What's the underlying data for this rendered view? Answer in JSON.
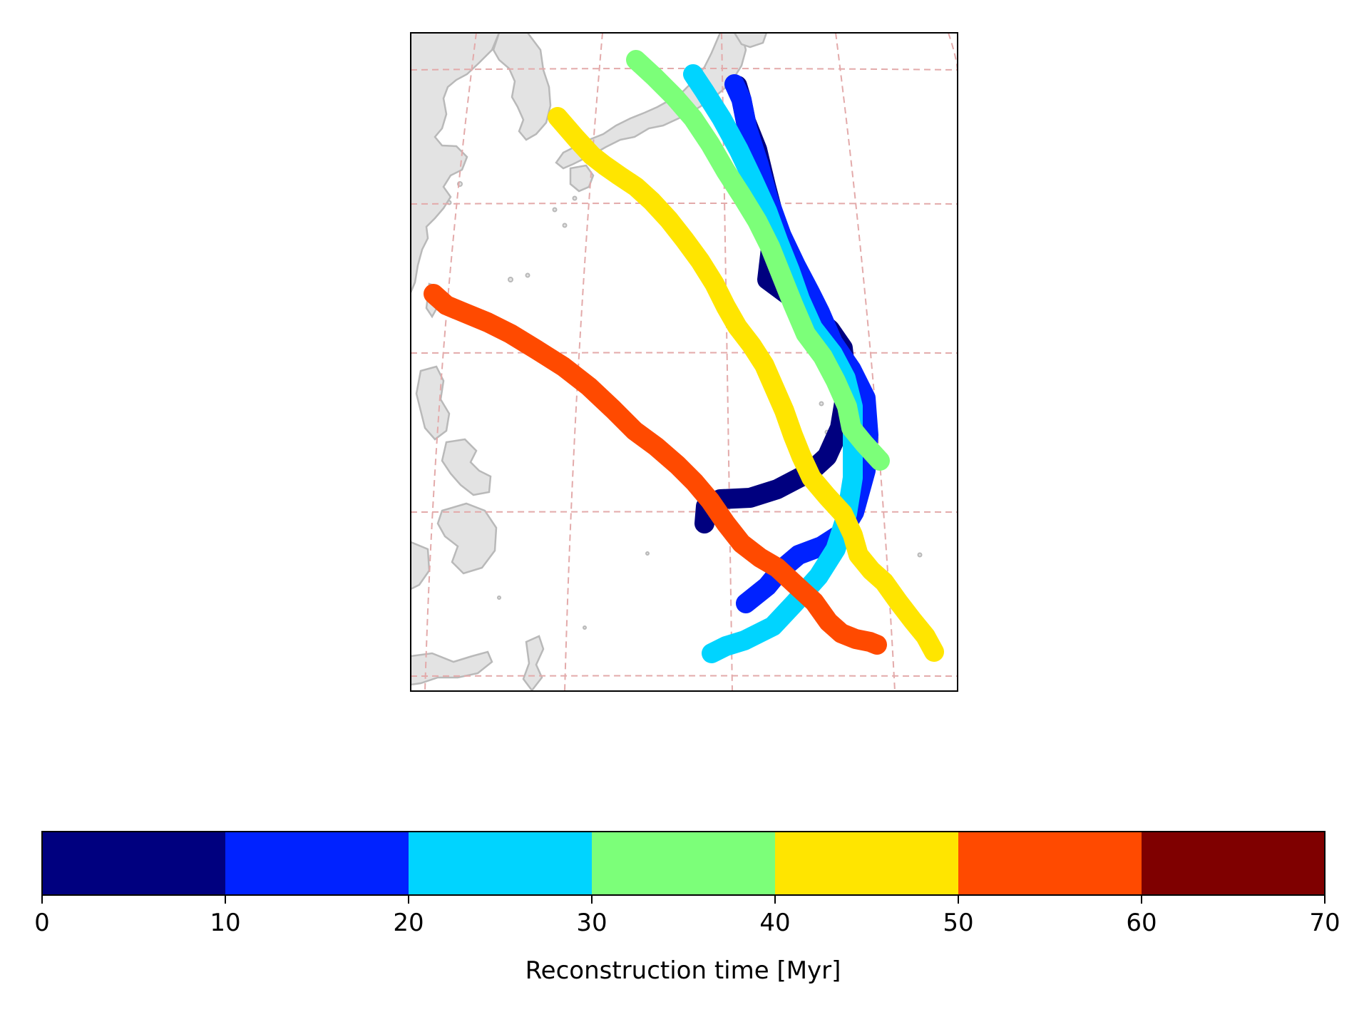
{
  "colorbar": {
    "label": "Reconstruction time [Myr]",
    "ticks": [
      "0",
      "10",
      "20",
      "30",
      "40",
      "50",
      "60",
      "70"
    ],
    "bins": [
      {
        "from": 0,
        "to": 10,
        "color": "#00007f"
      },
      {
        "from": 10,
        "to": 20,
        "color": "#0022ff"
      },
      {
        "from": 20,
        "to": 30,
        "color": "#00d4ff"
      },
      {
        "from": 30,
        "to": 40,
        "color": "#7cff79"
      },
      {
        "from": 40,
        "to": 50,
        "color": "#ffe500"
      },
      {
        "from": 50,
        "to": 60,
        "color": "#ff4a00"
      },
      {
        "from": 60,
        "to": 70,
        "color": "#7f0000"
      }
    ]
  },
  "map": {
    "land_color": "#e3e3e3",
    "coastline_color": "#b9b9b9",
    "gridline_color": "#e3aaaa",
    "gridline_style": "dashed",
    "tracks": [
      {
        "age_bin": "0-10",
        "color": "#00007f"
      },
      {
        "age_bin": "10-20",
        "color": "#0022ff"
      },
      {
        "age_bin": "20-30",
        "color": "#00d4ff"
      },
      {
        "age_bin": "30-40",
        "color": "#7cff79"
      },
      {
        "age_bin": "40-50",
        "color": "#ffe500"
      },
      {
        "age_bin": "50-60",
        "color": "#ff4a00"
      }
    ]
  }
}
